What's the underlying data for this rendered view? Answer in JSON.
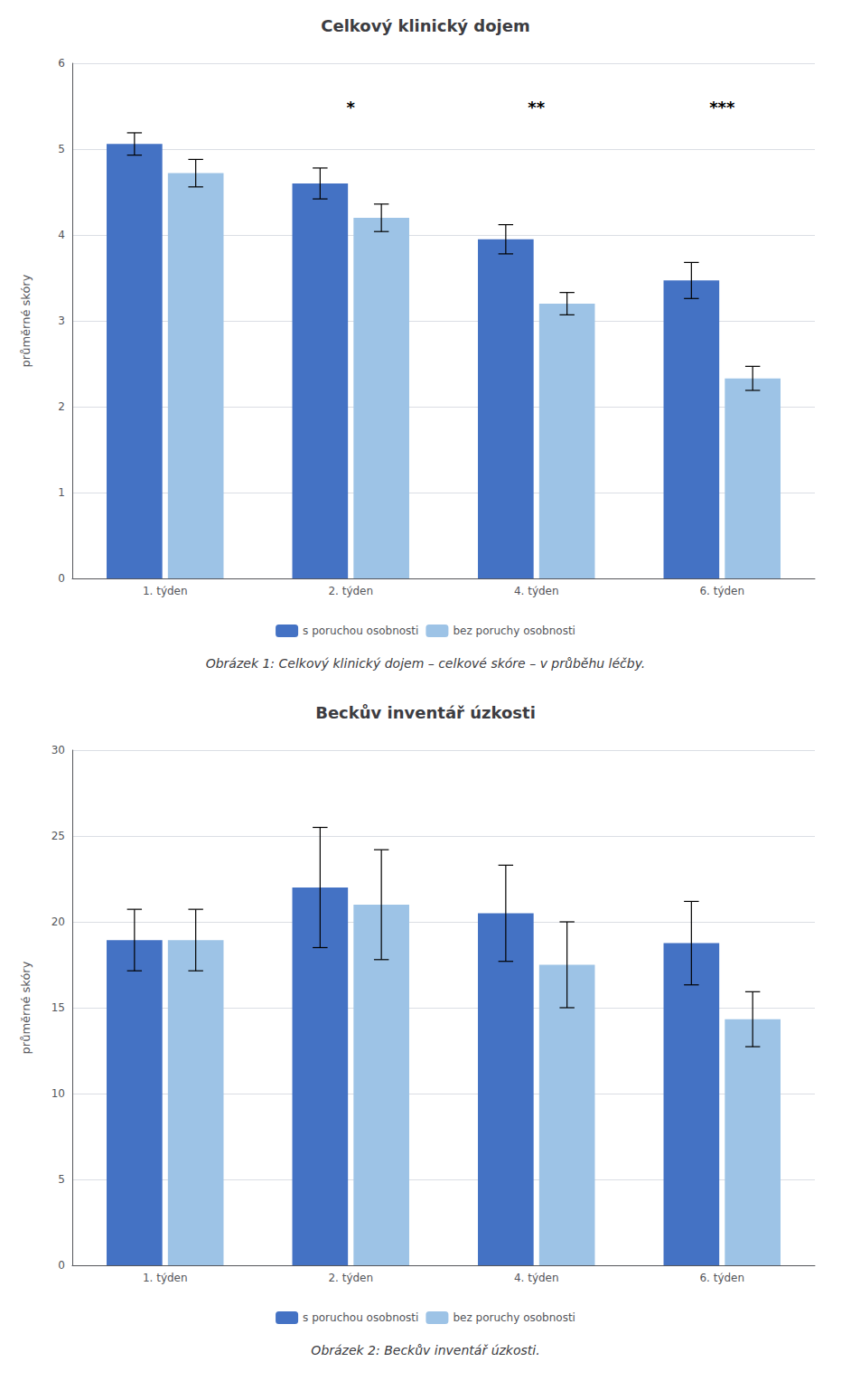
{
  "chart_data": [
    {
      "type": "bar",
      "title": "Celkový klinický dojem",
      "caption": "Obrázek 1: Celkový klinický dojem – celkové skóre – v průběhu léčby.",
      "ylabel": "průměrné skóry",
      "categories": [
        "1. týden",
        "2. týden",
        "4. týden",
        "6. týden"
      ],
      "series": [
        {
          "name": "s poruchou osobnosti",
          "color": "#4472C4",
          "values": [
            5.06,
            4.6,
            3.95,
            3.47
          ],
          "errors": [
            0.13,
            0.18,
            0.17,
            0.21
          ]
        },
        {
          "name": "bez poruchy osobnosti",
          "color": "#9DC3E6",
          "values": [
            4.72,
            4.2,
            3.2,
            2.33
          ],
          "errors": [
            0.16,
            0.16,
            0.13,
            0.14
          ]
        }
      ],
      "annotations": [
        {
          "text": "*",
          "category": "2. týden"
        },
        {
          "text": "**",
          "category": "4. týden"
        },
        {
          "text": "***",
          "category": "6. týden"
        }
      ],
      "ylim": [
        0,
        6
      ],
      "yticks": [
        0,
        1,
        2,
        3,
        4,
        5,
        6
      ],
      "grid": true,
      "legend": "bottom"
    },
    {
      "type": "bar",
      "title": "Beckův inventář úzkosti",
      "caption": "Obrázek 2: Beckův inventář úzkosti.",
      "ylabel": "průměrné skóry",
      "categories": [
        "1. týden",
        "2. týden",
        "4. týden",
        "6. týden"
      ],
      "series": [
        {
          "name": "s poruchou osobnosti",
          "color": "#4472C4",
          "values": [
            18.94,
            22.0,
            20.5,
            18.76
          ],
          "errors": [
            1.79,
            3.5,
            2.8,
            2.43
          ]
        },
        {
          "name": "bez poruchy osobnosti",
          "color": "#9DC3E6",
          "values": [
            18.94,
            21.0,
            17.5,
            14.33
          ],
          "errors": [
            1.79,
            3.2,
            2.5,
            1.6
          ]
        }
      ],
      "ylim": [
        0,
        30
      ],
      "yticks": [
        0,
        5,
        10,
        15,
        20,
        25,
        30
      ],
      "grid": true,
      "legend": "bottom"
    }
  ]
}
